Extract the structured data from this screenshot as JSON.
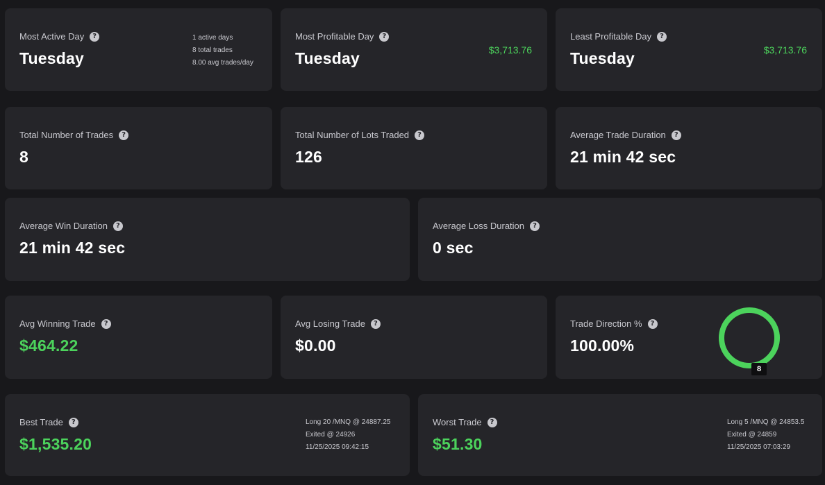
{
  "help_glyph": "?",
  "most_active_day": {
    "label": "Most Active Day",
    "value": "Tuesday",
    "details": [
      "1 active days",
      "8 total trades",
      "8.00 avg trades/day"
    ]
  },
  "most_profitable_day": {
    "label": "Most Profitable Day",
    "value": "Tuesday",
    "amount": "$3,713.76"
  },
  "least_profitable_day": {
    "label": "Least Profitable Day",
    "value": "Tuesday",
    "amount": "$3,713.76"
  },
  "total_trades": {
    "label": "Total Number of Trades",
    "value": "8"
  },
  "total_lots": {
    "label": "Total Number of Lots Traded",
    "value": "126"
  },
  "avg_trade_duration": {
    "label": "Average Trade Duration",
    "value": "21 min 42 sec"
  },
  "avg_win_duration": {
    "label": "Average Win Duration",
    "value": "21 min 42 sec"
  },
  "avg_loss_duration": {
    "label": "Average Loss Duration",
    "value": "0 sec"
  },
  "avg_winning_trade": {
    "label": "Avg Winning Trade",
    "value": "$464.22"
  },
  "avg_losing_trade": {
    "label": "Avg Losing Trade",
    "value": "$0.00"
  },
  "trade_direction": {
    "label": "Trade Direction %",
    "value": "100.00%",
    "long_fraction": 1.0,
    "badge": "8",
    "ring_color": "#4cd35c"
  },
  "best_trade": {
    "label": "Best Trade",
    "value": "$1,535.20",
    "details": [
      "Long 20 /MNQ @ 24887.25",
      "Exited @ 24926",
      "11/25/2025 09:42:15"
    ]
  },
  "worst_trade": {
    "label": "Worst Trade",
    "value": "$51.30",
    "details": [
      "Long 5 /MNQ @ 24853.5",
      "Exited @ 24859",
      "11/25/2025 07:03:29"
    ]
  },
  "colors": {
    "background": "#18181b",
    "card": "#252529",
    "positive": "#4cd35c",
    "label": "#c9c9cf"
  }
}
